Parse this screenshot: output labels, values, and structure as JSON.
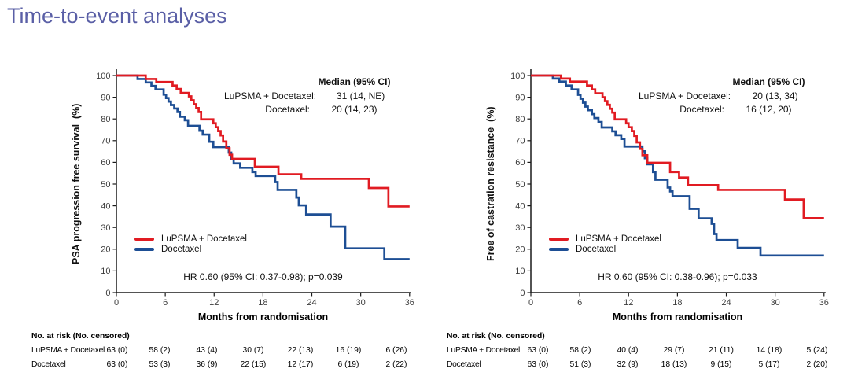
{
  "title": "Time-to-event analyses",
  "colors": {
    "lupsma": "#e11b22",
    "docetaxel": "#1d4e94",
    "title": "#5a5fa6",
    "axis": "#1a1a1a"
  },
  "axes": {
    "x_ticks": [
      0,
      6,
      12,
      18,
      24,
      30,
      36
    ],
    "y_ticks": [
      0,
      10,
      20,
      30,
      40,
      50,
      60,
      70,
      80,
      90,
      100
    ],
    "xlim": [
      0,
      36
    ],
    "ylim": [
      0,
      100
    ]
  },
  "charts": [
    {
      "name": "psa-progression-free-survival",
      "ylabel": "PSA progression free survival  (%)",
      "xlabel": "Months from randomisation",
      "median": {
        "header": "Median (95% CI)",
        "rows": [
          {
            "label": "LuPSMA + Docetaxel:",
            "value": "31 (14, NE)"
          },
          {
            "label": "Docetaxel:",
            "value": "20 (14, 23)"
          }
        ]
      },
      "hr_text": "HR 0.60 (95% CI: 0.37-0.98); p=0.039",
      "legend": [
        "LuPSMA + Docetaxel",
        "Docetaxel"
      ],
      "risk_table": {
        "header": "No. at risk (No. censored)",
        "rows": [
          {
            "label": "LuPSMA + Docetaxel",
            "values": [
              "63 (0)",
              "58 (2)",
              "43 (4)",
              "30 (7)",
              "22 (13)",
              "16 (19)",
              "6 (26)"
            ]
          },
          {
            "label": "Docetaxel",
            "values": [
              "63 (0)",
              "53 (3)",
              "36 (9)",
              "22 (15)",
              "12 (17)",
              "6 (19)",
              "2 (22)"
            ]
          }
        ]
      },
      "chart_data": {
        "type": "line",
        "step": true,
        "title": "PSA progression free survival",
        "xlabel": "Months from randomisation",
        "ylabel": "PSA progression free survival (%)",
        "xlim": [
          0,
          36
        ],
        "ylim": [
          0,
          100
        ],
        "series": [
          {
            "name": "LuPSMA + Docetaxel",
            "color_key": "lupsma",
            "points": [
              [
                0,
                100
              ],
              [
                3.6,
                98.4
              ],
              [
                4.9,
                97.0
              ],
              [
                6.9,
                95.4
              ],
              [
                7.4,
                93.8
              ],
              [
                7.9,
                92.0
              ],
              [
                8.9,
                90.4
              ],
              [
                9.2,
                88.6
              ],
              [
                9.5,
                86.8
              ],
              [
                9.8,
                85.0
              ],
              [
                10.1,
                83.2
              ],
              [
                10.4,
                79.8
              ],
              [
                11.9,
                78.0
              ],
              [
                12.2,
                76.2
              ],
              [
                12.5,
                74.4
              ],
              [
                12.8,
                72.4
              ],
              [
                13.1,
                69.6
              ],
              [
                13.5,
                66.5
              ],
              [
                13.9,
                63.5
              ],
              [
                14.2,
                61.6
              ],
              [
                17.0,
                58.0
              ],
              [
                19.9,
                54.5
              ],
              [
                22.7,
                52.4
              ],
              [
                31.0,
                48.2
              ],
              [
                33.4,
                39.7
              ]
            ]
          },
          {
            "name": "Docetaxel",
            "color_key": "docetaxel",
            "points": [
              [
                0,
                100
              ],
              [
                2.6,
                98.4
              ],
              [
                3.6,
                96.8
              ],
              [
                4.3,
                95.2
              ],
              [
                4.8,
                93.6
              ],
              [
                5.8,
                91.2
              ],
              [
                6.1,
                89.6
              ],
              [
                6.4,
                88.0
              ],
              [
                6.7,
                86.4
              ],
              [
                7.1,
                84.8
              ],
              [
                7.5,
                83.2
              ],
              [
                7.8,
                81.0
              ],
              [
                8.4,
                79.4
              ],
              [
                8.8,
                76.8
              ],
              [
                10.2,
                74.6
              ],
              [
                10.6,
                72.8
              ],
              [
                11.4,
                69.5
              ],
              [
                11.9,
                67.0
              ],
              [
                13.8,
                64.5
              ],
              [
                14.1,
                61.5
              ],
              [
                14.4,
                59.5
              ],
              [
                15.2,
                57.5
              ],
              [
                16.7,
                55.5
              ],
              [
                17.1,
                53.7
              ],
              [
                19.5,
                50.9
              ],
              [
                19.8,
                47.3
              ],
              [
                22.1,
                43.8
              ],
              [
                22.4,
                40.2
              ],
              [
                23.3,
                36.0
              ],
              [
                26.3,
                30.4
              ],
              [
                28.1,
                20.4
              ],
              [
                32.9,
                15.4
              ]
            ]
          }
        ]
      }
    },
    {
      "name": "free-of-castration-resistance",
      "ylabel": "Free of castration resistance  (%)",
      "xlabel": "Months from randomisation",
      "median": {
        "header": "Median (95% CI)",
        "rows": [
          {
            "label": "LuPSMA + Docetaxel:",
            "value": "20 (13, 34)"
          },
          {
            "label": "Docetaxel:",
            "value": "16 (12, 20)"
          }
        ]
      },
      "hr_text": "HR 0.60 (95% CI: 0.38-0.96); p=0.033",
      "legend": [
        "LuPSMA + Docetaxel",
        "Docetaxel"
      ],
      "risk_table": {
        "header": "No. at risk (No. censored)",
        "rows": [
          {
            "label": "LuPSMA + Docetaxel",
            "values": [
              "63 (0)",
              "58 (2)",
              "40 (4)",
              "29 (7)",
              "21 (11)",
              "14 (18)",
              "5 (24)"
            ]
          },
          {
            "label": "Docetaxel",
            "values": [
              "63 (0)",
              "51 (3)",
              "32 (9)",
              "18 (13)",
              "9 (15)",
              "5 (17)",
              "2 (20)"
            ]
          }
        ]
      },
      "chart_data": {
        "type": "line",
        "step": true,
        "title": "Free of castration resistance",
        "xlabel": "Months from randomisation",
        "ylabel": "Free of castration resistance (%)",
        "xlim": [
          0,
          36
        ],
        "ylim": [
          0,
          100
        ],
        "series": [
          {
            "name": "LuPSMA + Docetaxel",
            "color_key": "lupsma",
            "points": [
              [
                0,
                100
              ],
              [
                3.7,
                98.6
              ],
              [
                4.8,
                97.2
              ],
              [
                6.9,
                95.4
              ],
              [
                7.5,
                93.6
              ],
              [
                7.9,
                91.8
              ],
              [
                8.8,
                90.0
              ],
              [
                9.1,
                88.2
              ],
              [
                9.4,
                86.5
              ],
              [
                9.7,
                84.7
              ],
              [
                10.0,
                82.9
              ],
              [
                10.3,
                79.8
              ],
              [
                11.7,
                78.0
              ],
              [
                12.0,
                76.2
              ],
              [
                12.4,
                74.4
              ],
              [
                12.7,
                72.2
              ],
              [
                13.0,
                69.2
              ],
              [
                13.4,
                66.2
              ],
              [
                13.7,
                63.3
              ],
              [
                14.3,
                59.8
              ],
              [
                17.1,
                55.5
              ],
              [
                18.2,
                53.0
              ],
              [
                19.3,
                49.5
              ],
              [
                23.0,
                47.3
              ],
              [
                31.2,
                42.9
              ],
              [
                33.5,
                34.3
              ]
            ]
          },
          {
            "name": "Docetaxel",
            "color_key": "docetaxel",
            "points": [
              [
                0,
                100
              ],
              [
                2.7,
                98.6
              ],
              [
                3.5,
                97.2
              ],
              [
                4.3,
                95.4
              ],
              [
                5.0,
                93.6
              ],
              [
                5.8,
                91.1
              ],
              [
                6.1,
                89.3
              ],
              [
                6.4,
                87.5
              ],
              [
                6.7,
                85.7
              ],
              [
                7.0,
                84.0
              ],
              [
                7.5,
                82.2
              ],
              [
                7.8,
                80.4
              ],
              [
                8.3,
                78.6
              ],
              [
                8.7,
                76.1
              ],
              [
                10.0,
                74.3
              ],
              [
                10.4,
                72.5
              ],
              [
                11.1,
                70.8
              ],
              [
                11.5,
                67.3
              ],
              [
                13.7,
                65.1
              ],
              [
                14.0,
                61.9
              ],
              [
                14.3,
                59.1
              ],
              [
                15.0,
                55.5
              ],
              [
                15.3,
                52.0
              ],
              [
                16.8,
                48.4
              ],
              [
                17.1,
                46.6
              ],
              [
                17.4,
                44.4
              ],
              [
                19.5,
                38.6
              ],
              [
                20.6,
                34.2
              ],
              [
                22.2,
                31.7
              ],
              [
                22.5,
                27.0
              ],
              [
                22.8,
                24.2
              ],
              [
                25.4,
                20.6
              ],
              [
                28.2,
                17.1
              ]
            ]
          }
        ]
      }
    }
  ]
}
